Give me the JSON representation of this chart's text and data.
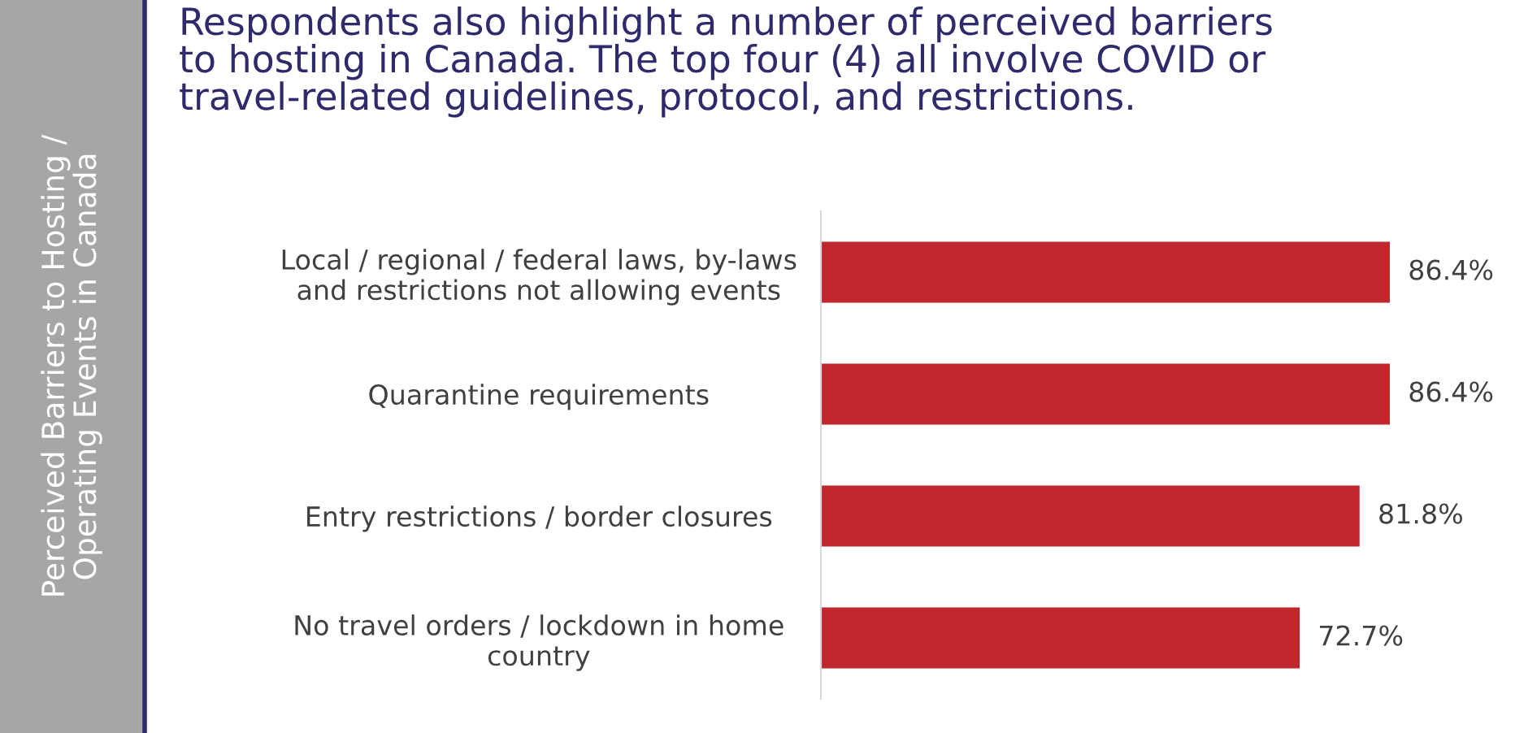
{
  "chart_data": {
    "type": "bar",
    "orientation": "horizontal",
    "title": "Respondents also highlight a number of perceived barriers\nto hosting in Canada. The top four (4) all involve COVID or\ntravel-related guidelines, protocol, and restrictions.",
    "annotations": [
      "Perceived Barriers to Hosting /\nOperating Events in Canada"
    ],
    "categories": [
      "Local / regional / federal laws, by-laws\nand restrictions not allowing events",
      "Quarantine requirements",
      "Entry restrictions / border closures",
      "No travel orders / lockdown in home\ncountry"
    ],
    "values": [
      86.4,
      86.4,
      81.8,
      72.7
    ],
    "value_labels": [
      "86.4%",
      "86.4%",
      "81.8%",
      "72.7%"
    ],
    "color": "#c0272d",
    "grid": false,
    "legend": false
  }
}
